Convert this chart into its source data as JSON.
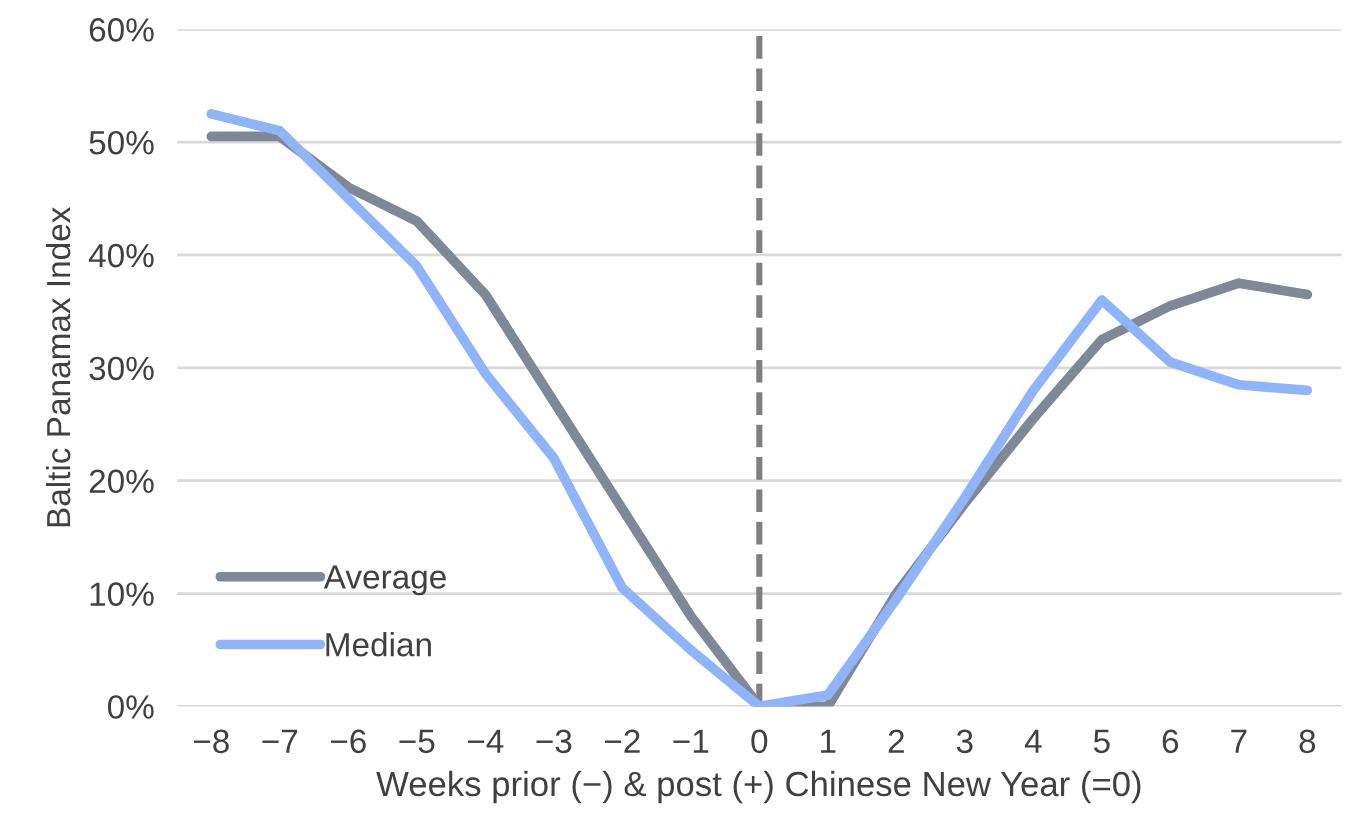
{
  "chart_data": {
    "type": "line",
    "xlabel": "Weeks prior (−) & post (+) Chinese New Year (=0)",
    "ylabel": "Baltic Panamax Index",
    "x": [
      -8,
      -7,
      -6,
      -5,
      -4,
      -3,
      -2,
      -1,
      0,
      1,
      2,
      3,
      4,
      5,
      6,
      7,
      8
    ],
    "series": [
      {
        "name": "Average",
        "color": "#7f8896",
        "values": [
          50.5,
          50.5,
          46,
          43,
          36.5,
          27,
          17.5,
          8,
          0,
          0,
          10,
          18,
          25.5,
          32.5,
          35.5,
          37.5,
          36.5
        ]
      },
      {
        "name": "Median",
        "color": "#8fb4fb",
        "values": [
          52.5,
          51,
          45,
          39,
          29.5,
          22,
          10.5,
          5,
          0,
          1,
          9.5,
          18.5,
          28,
          36,
          30.5,
          28.5,
          28
        ]
      }
    ],
    "xlim": [
      -8.5,
      8.5
    ],
    "xticks": [
      {
        "value": -8,
        "label": "−8"
      },
      {
        "value": -7,
        "label": "−7"
      },
      {
        "value": -6,
        "label": "−6"
      },
      {
        "value": -5,
        "label": "−5"
      },
      {
        "value": -4,
        "label": "−4"
      },
      {
        "value": -3,
        "label": "−3"
      },
      {
        "value": -2,
        "label": "−2"
      },
      {
        "value": -1,
        "label": "−1"
      },
      0,
      1,
      2,
      3,
      4,
      5,
      6,
      7,
      8
    ],
    "ylim": [
      0,
      60
    ],
    "yticks": [
      {
        "value": 0,
        "label": "0%"
      },
      {
        "value": 10,
        "label": "10%"
      },
      {
        "value": 20,
        "label": "20%"
      },
      {
        "value": 30,
        "label": "30%"
      },
      {
        "value": 40,
        "label": "40%"
      },
      {
        "value": 50,
        "label": "50%"
      },
      {
        "value": 60,
        "label": "60%"
      }
    ],
    "ref_lines": [
      {
        "axis": "x",
        "value": 0,
        "color": "#7f7f7f",
        "line_style": "dashed"
      }
    ],
    "grid": "y",
    "legend": "bottom left",
    "marker": "none",
    "line_style": "solid"
  }
}
